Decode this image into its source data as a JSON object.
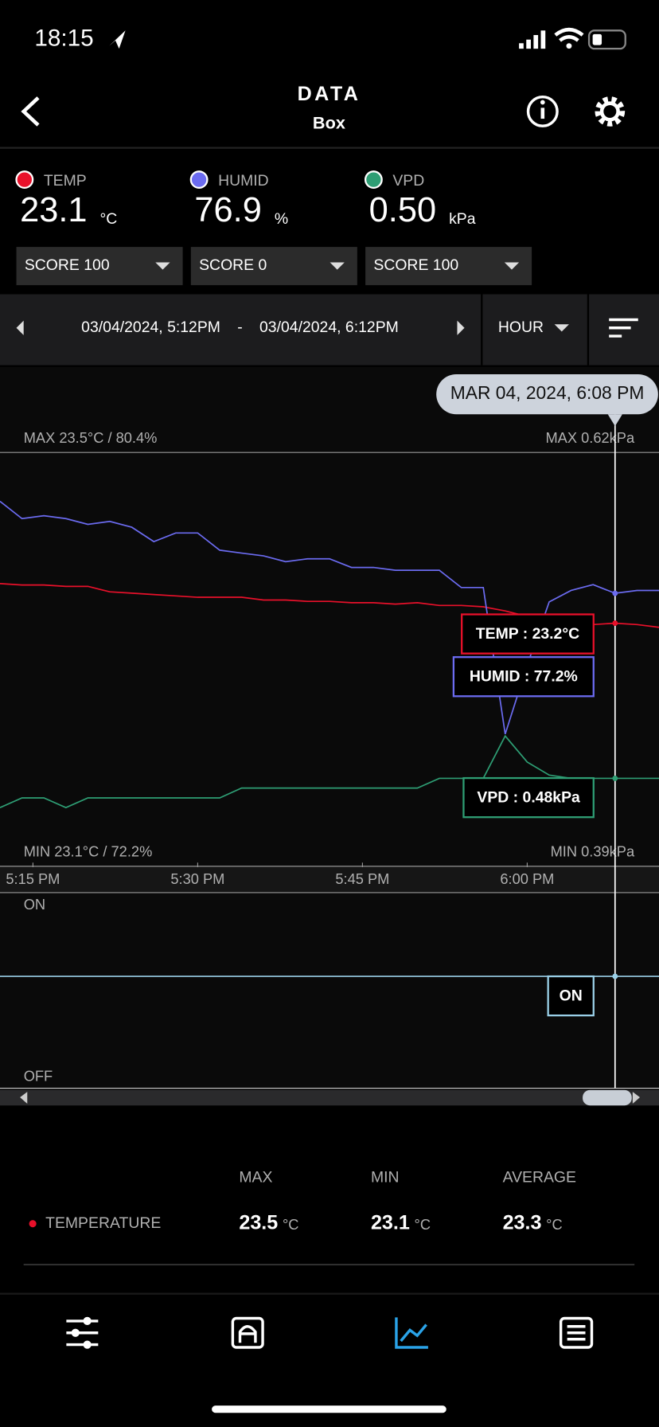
{
  "status_bar": {
    "time": "18:15"
  },
  "header": {
    "title": "DATA",
    "subtitle": "Box"
  },
  "readings": [
    {
      "label": "TEMP",
      "value": "23.1",
      "unit": "°C",
      "color": "#e8102a",
      "score": "SCORE 100"
    },
    {
      "label": "HUMID",
      "value": "76.9",
      "unit": "%",
      "color": "#6b6bf0",
      "score": "SCORE 0"
    },
    {
      "label": "VPD",
      "value": "0.50",
      "unit": "kPa",
      "color": "#2e9e74",
      "score": "SCORE 100"
    }
  ],
  "range": {
    "start": "03/04/2024, 5:12PM",
    "separator": "-",
    "end": "03/04/2024, 6:12PM",
    "unit": "HOUR"
  },
  "chart_data": {
    "type": "line",
    "cursor_label": "MAR 04, 2024, 6:08 PM",
    "max_left": "MAX 23.5°C / 80.4%",
    "max_right": "MAX 0.62kPa",
    "min_left": "MIN 23.1°C / 72.2%",
    "min_right": "MIN 0.39kPa",
    "xlim": [
      12,
      72
    ],
    "xticks": [
      {
        "value": 15,
        "label": "5:15 PM"
      },
      {
        "value": 30,
        "label": "5:30 PM"
      },
      {
        "value": 45,
        "label": "5:45 PM"
      },
      {
        "value": 60,
        "label": "6:00 PM"
      }
    ],
    "cursor_x": 68,
    "cursor_index": 28,
    "series": [
      {
        "name": "TEMP",
        "color": "#e8102a",
        "ylim": [
          21.42,
          24.45
        ],
        "tooltip": "TEMP :  23.2°C",
        "values": [
          23.49,
          23.48,
          23.48,
          23.47,
          23.47,
          23.43,
          23.42,
          23.41,
          23.4,
          23.39,
          23.39,
          23.39,
          23.37,
          23.37,
          23.36,
          23.36,
          23.35,
          23.35,
          23.34,
          23.35,
          23.33,
          23.33,
          23.32,
          23.29,
          23.25,
          23.26,
          23.22,
          23.19,
          23.2,
          23.19,
          23.17
        ]
      },
      {
        "name": "HUMID",
        "color": "#6b6bf0",
        "ylim": [
          67.7,
          82.1
        ],
        "tooltip": "HUMID :  77.2%",
        "values": [
          80.4,
          79.8,
          79.9,
          79.8,
          79.6,
          79.7,
          79.5,
          79.0,
          79.3,
          79.3,
          78.7,
          78.6,
          78.5,
          78.3,
          78.4,
          78.4,
          78.1,
          78.1,
          78.0,
          78.0,
          78.0,
          77.4,
          77.4,
          72.3,
          74.7,
          76.9,
          77.3,
          77.5,
          77.2,
          77.3,
          77.3
        ]
      },
      {
        "name": "VPD",
        "color": "#2e9e74",
        "ylim": [
          0.21,
          1.48
        ],
        "tooltip": "VPD :  0.48kPa",
        "values": [
          0.39,
          0.42,
          0.42,
          0.39,
          0.42,
          0.42,
          0.42,
          0.42,
          0.42,
          0.42,
          0.42,
          0.45,
          0.45,
          0.45,
          0.45,
          0.45,
          0.45,
          0.45,
          0.45,
          0.45,
          0.48,
          0.48,
          0.48,
          0.61,
          0.53,
          0.49,
          0.48,
          0.48,
          0.48,
          0.48,
          0.48
        ]
      }
    ]
  },
  "switch": {
    "on": "ON",
    "off": "OFF",
    "tooltip": "ON"
  },
  "stats": {
    "headers": [
      "MAX",
      "MIN",
      "AVERAGE"
    ],
    "rows": [
      {
        "name": "TEMPERATURE",
        "color": "#e8102a",
        "values": [
          "23.5",
          "23.1",
          "23.3"
        ],
        "unit": "°C"
      }
    ]
  }
}
